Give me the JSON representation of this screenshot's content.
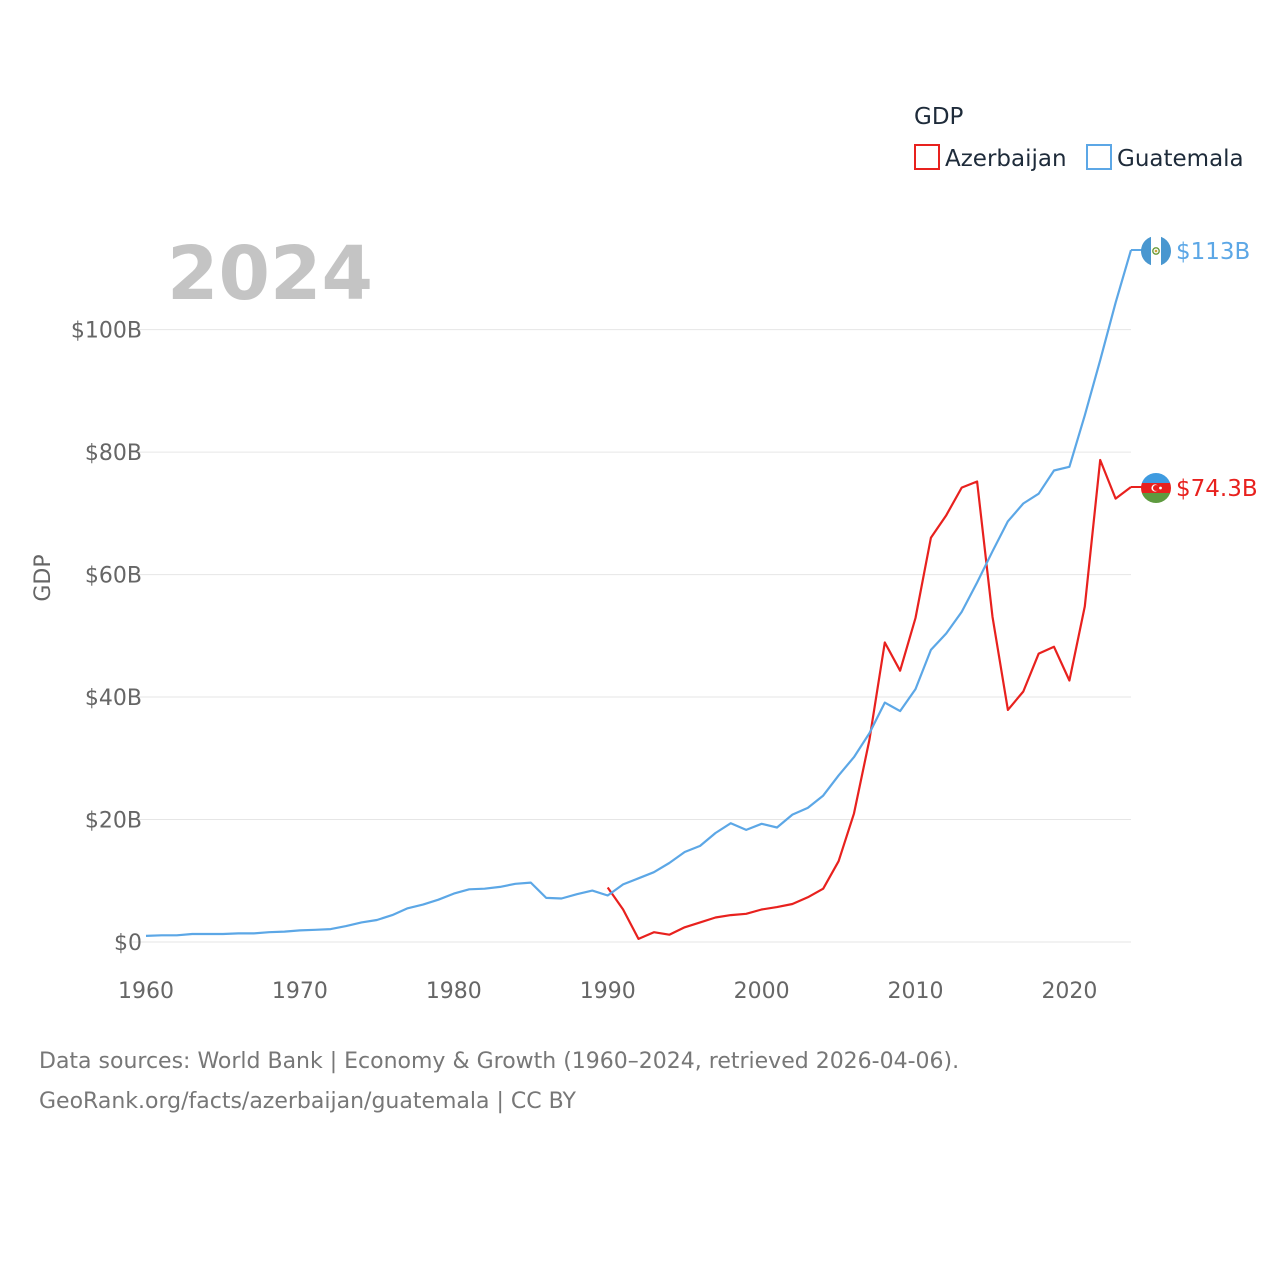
{
  "chart_data": {
    "type": "line",
    "year_label": "2024",
    "ylabel": "GDP",
    "xlim": [
      1960,
      2024
    ],
    "ylim": [
      0,
      113
    ],
    "x_ticks": [
      1960,
      1970,
      1980,
      1990,
      2000,
      2010,
      2020
    ],
    "x_tick_labels": [
      "1960",
      "1970",
      "1980",
      "1990",
      "2000",
      "2010",
      "2020"
    ],
    "y_ticks": [
      0,
      20,
      40,
      60,
      80,
      100
    ],
    "y_tick_labels": [
      "$0",
      "$20B",
      "$40B",
      "$60B",
      "$80B",
      "$100B"
    ],
    "legend": {
      "title": "GDP",
      "position": "top-right",
      "entries": [
        "Azerbaijan",
        "Guatemala"
      ]
    },
    "series": [
      {
        "name": "Azerbaijan",
        "color": "#e8211e",
        "end_label": "$74.3B",
        "flag_icon": "azerbaijan-flag-icon",
        "x": [
          1990,
          1991,
          1992,
          1993,
          1994,
          1995,
          1996,
          1997,
          1998,
          1999,
          2000,
          2001,
          2002,
          2003,
          2004,
          2005,
          2006,
          2007,
          2008,
          2009,
          2010,
          2011,
          2012,
          2013,
          2014,
          2015,
          2016,
          2017,
          2018,
          2019,
          2020,
          2021,
          2022,
          2023,
          2024
        ],
        "values": [
          8.9,
          5.3,
          0.5,
          1.6,
          1.2,
          2.4,
          3.2,
          4.0,
          4.4,
          4.6,
          5.3,
          5.7,
          6.2,
          7.3,
          8.7,
          13.2,
          21.0,
          33.0,
          48.9,
          44.3,
          52.9,
          66.0,
          69.7,
          74.2,
          75.2,
          53.1,
          37.9,
          40.9,
          47.1,
          48.2,
          42.7,
          54.8,
          78.7,
          72.4,
          74.3
        ]
      },
      {
        "name": "Guatemala",
        "color": "#5ca7e6",
        "end_label": "$113B",
        "flag_icon": "guatemala-flag-icon",
        "x": [
          1960,
          1961,
          1962,
          1963,
          1964,
          1965,
          1966,
          1967,
          1968,
          1969,
          1970,
          1971,
          1972,
          1973,
          1974,
          1975,
          1976,
          1977,
          1978,
          1979,
          1980,
          1981,
          1982,
          1983,
          1984,
          1985,
          1986,
          1987,
          1988,
          1989,
          1990,
          1991,
          1992,
          1993,
          1994,
          1995,
          1996,
          1997,
          1998,
          1999,
          2000,
          2001,
          2002,
          2003,
          2004,
          2005,
          2006,
          2007,
          2008,
          2009,
          2010,
          2011,
          2012,
          2013,
          2014,
          2015,
          2016,
          2017,
          2018,
          2019,
          2020,
          2021,
          2022,
          2023,
          2024
        ],
        "values": [
          1.0,
          1.1,
          1.1,
          1.3,
          1.3,
          1.3,
          1.4,
          1.4,
          1.6,
          1.7,
          1.9,
          2.0,
          2.1,
          2.6,
          3.2,
          3.6,
          4.4,
          5.5,
          6.1,
          6.9,
          7.9,
          8.6,
          8.7,
          9.0,
          9.5,
          9.7,
          7.2,
          7.1,
          7.8,
          8.4,
          7.6,
          9.4,
          10.4,
          11.4,
          12.9,
          14.7,
          15.7,
          17.8,
          19.4,
          18.3,
          19.3,
          18.7,
          20.8,
          21.9,
          23.9,
          27.2,
          30.2,
          34.1,
          39.1,
          37.7,
          41.3,
          47.7,
          50.4,
          53.9,
          58.7,
          63.8,
          68.7,
          71.6,
          73.2,
          77.0,
          77.6,
          86.0,
          95.0,
          104.4,
          113.0
        ]
      }
    ]
  },
  "footer": {
    "line1": "Data sources: World Bank | Economy & Growth (1960–2024, retrieved 2026-04-06).",
    "line2": "GeoRank.org/facts/azerbaijan/guatemala | CC BY"
  }
}
